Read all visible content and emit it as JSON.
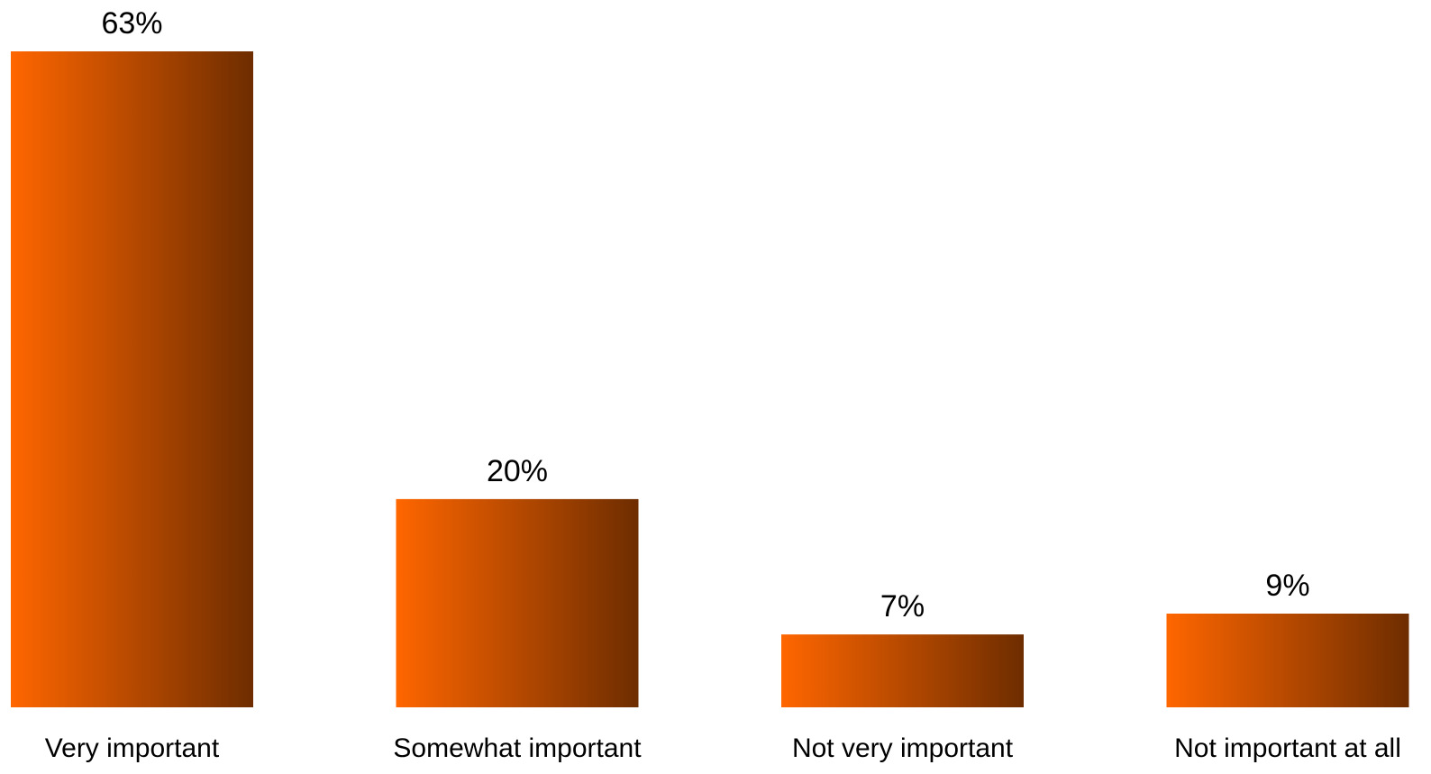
{
  "chart_data": {
    "type": "bar",
    "categories": [
      "Very important",
      "Somewhat important",
      "Not very important",
      "Not important at all"
    ],
    "values": [
      63,
      20,
      7,
      9
    ],
    "value_labels": [
      "63%",
      "20%",
      "7%",
      "9%"
    ],
    "ylim": [
      0,
      63
    ],
    "grid": false,
    "legend": "none",
    "colors": {
      "bar_gradient_start": "#ff6600",
      "bar_gradient_end": "#6e2d00",
      "text": "#000000",
      "background": "#ffffff"
    }
  }
}
